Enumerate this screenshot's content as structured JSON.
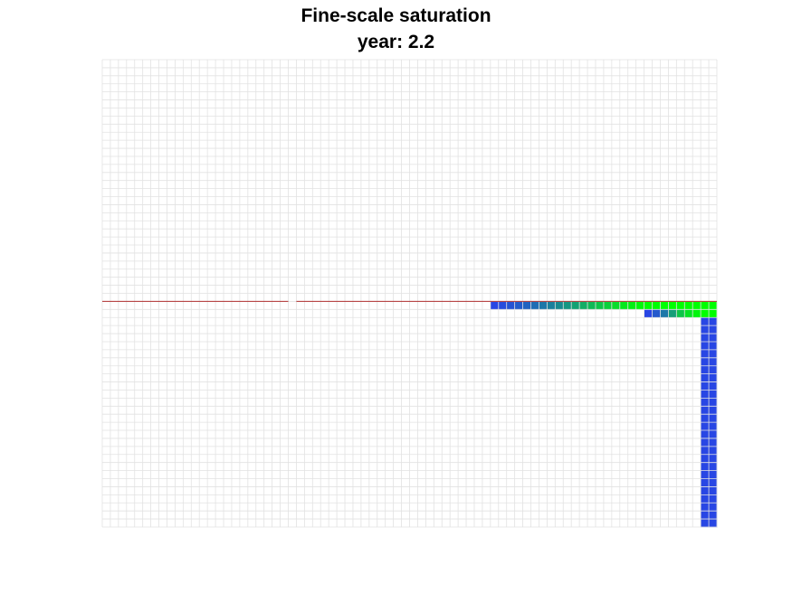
{
  "chart_data": {
    "type": "heatmap",
    "title": "Fine-scale saturation",
    "subtitle": "year: 2.2",
    "grid": true,
    "axes_visible": false,
    "grid_dims": {
      "nx": 76,
      "ny": 58
    },
    "colors": {
      "grid_line": "#e2e2e2",
      "well_line": "#b03030",
      "saturation_low": "#2a3cf0",
      "saturation_high": "#00ff00",
      "background": "#ffffff"
    },
    "well_row": 30,
    "well_segments": [
      [
        0,
        22
      ],
      [
        24,
        75
      ]
    ],
    "saturation_cells": [
      {
        "row": 30,
        "col_start": 48,
        "col_end": 75,
        "values": [
          0.05,
          0.08,
          0.12,
          0.16,
          0.2,
          0.25,
          0.3,
          0.35,
          0.4,
          0.46,
          0.52,
          0.58,
          0.64,
          0.7,
          0.76,
          0.82,
          0.88,
          0.92,
          0.96,
          1,
          1,
          1,
          1,
          1,
          1,
          1,
          1,
          1
        ]
      },
      {
        "row": 31,
        "col_start": 67,
        "col_end": 75,
        "values": [
          0.05,
          0.15,
          0.3,
          0.5,
          0.7,
          0.85,
          0.95,
          1,
          1
        ]
      },
      {
        "row": 32,
        "col_start": 74,
        "col_end": 75,
        "values": [
          0.05,
          0.05
        ]
      }
    ],
    "vertical_plume": {
      "col_start": 74,
      "col_end": 75,
      "row_start": 32,
      "row_end": 57,
      "value": 0.05
    }
  }
}
